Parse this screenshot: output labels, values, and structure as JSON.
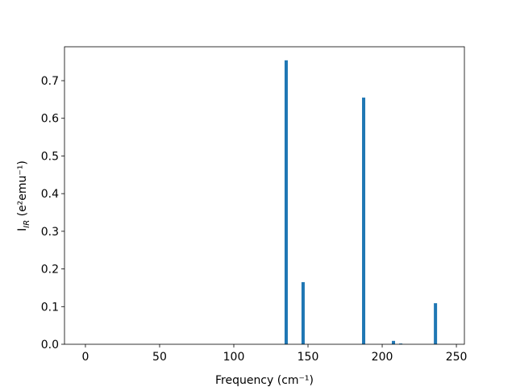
{
  "chart_data": {
    "type": "bar",
    "x": [
      135.3,
      146.7,
      187.5,
      207.6,
      212.5,
      235.9
    ],
    "values": [
      0.754,
      0.165,
      0.655,
      0.009,
      0.002,
      0.109
    ],
    "color": "#1f77b4",
    "xlabel": "Frequency (cm⁻¹)",
    "ylabel": {
      "main": "I",
      "sub": "IR",
      "rest": " (e²emu⁻¹)"
    },
    "xlim": [
      -14.1,
      255.4
    ],
    "xticks": [
      0,
      50,
      100,
      150,
      200,
      250
    ],
    "ylim": [
      0,
      0.79
    ],
    "yticks": [
      {
        "value": 0,
        "label": "0.0"
      },
      0.1,
      0.2,
      0.3,
      0.4,
      0.5,
      0.6,
      0.7
    ]
  }
}
